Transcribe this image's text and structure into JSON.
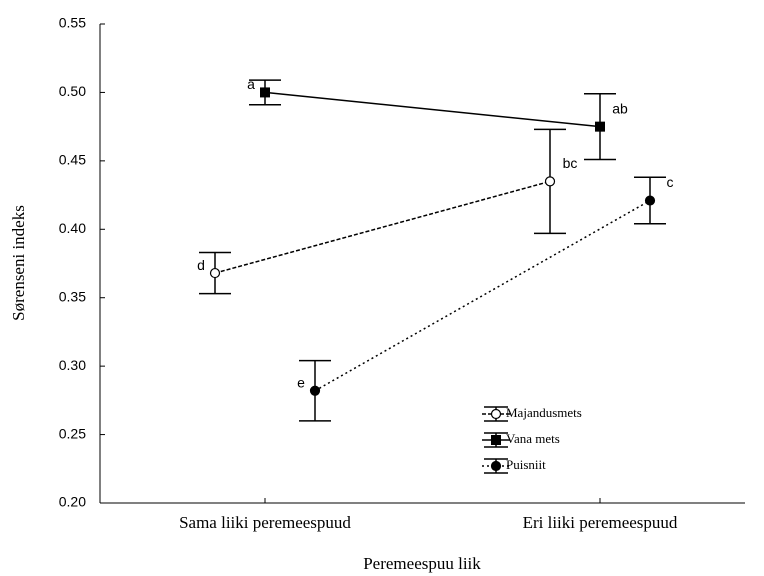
{
  "chart_data": {
    "type": "errorbar-line",
    "xlabel": "Peremeespuu liik",
    "ylabel": "Sørenseni indeks",
    "categories": [
      "Sama liiki peremeespuud",
      "Eri liiki peremeespuud"
    ],
    "series": [
      {
        "name": "Majandusmets",
        "color": "#000000",
        "linestyle": "dashed",
        "marker": "open-circle",
        "values": [
          0.368,
          0.435
        ],
        "errors": [
          0.015,
          0.038
        ],
        "labels": [
          "d",
          "bc"
        ]
      },
      {
        "name": "Vana mets",
        "color": "#000000",
        "linestyle": "solid",
        "marker": "square",
        "values": [
          0.5,
          0.475
        ],
        "errors": [
          0.009,
          0.024
        ],
        "labels": [
          "a",
          "ab"
        ]
      },
      {
        "name": "Puisniit",
        "color": "#000000",
        "linestyle": "dotted",
        "marker": "circle",
        "values": [
          0.282,
          0.421
        ],
        "errors": [
          0.022,
          0.017
        ],
        "labels": [
          "e",
          "c"
        ]
      }
    ],
    "ylim": [
      0.2,
      0.55
    ],
    "yticks": [
      {
        "value": 0.2,
        "label": "0.20"
      },
      {
        "value": 0.25,
        "label": "0.25"
      },
      {
        "value": 0.3,
        "label": "0.30"
      },
      {
        "value": 0.35,
        "label": "0.35"
      },
      {
        "value": 0.4,
        "label": "0.40"
      },
      {
        "value": 0.45,
        "label": "0.45"
      },
      {
        "value": 0.5,
        "label": "0.50"
      },
      {
        "value": 0.55,
        "label": "0.55"
      }
    ],
    "legend": "lower right"
  }
}
